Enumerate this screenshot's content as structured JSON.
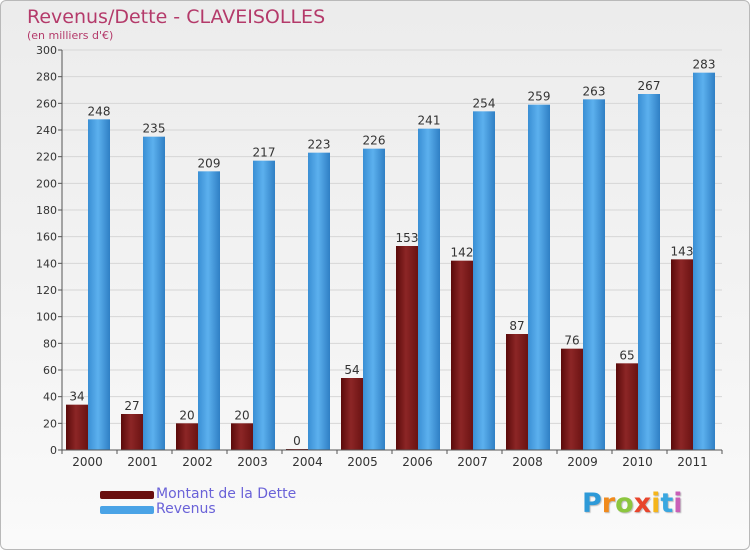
{
  "chart_data": {
    "type": "bar",
    "title": "Revenus/Dette - CLAVEISOLLES",
    "subtitle": "(en milliers d'€)",
    "categories": [
      "2000",
      "2001",
      "2002",
      "2003",
      "2004",
      "2005",
      "2006",
      "2007",
      "2008",
      "2009",
      "2010",
      "2011"
    ],
    "series": [
      {
        "name": "Montant de la Dette",
        "values": [
          34,
          27,
          20,
          20,
          0,
          54,
          153,
          142,
          87,
          76,
          65,
          143
        ],
        "color": "#7a1a1a"
      },
      {
        "name": "Revenus",
        "values": [
          248,
          235,
          209,
          217,
          223,
          226,
          241,
          254,
          259,
          263,
          267,
          283
        ],
        "color": "#4aa3e6"
      }
    ],
    "ylim": [
      0,
      300
    ],
    "yticks": [
      0,
      20,
      40,
      60,
      80,
      100,
      120,
      140,
      160,
      180,
      200,
      220,
      240,
      260,
      280,
      300
    ],
    "grid": true,
    "legend_position": "bottom-left"
  },
  "brand": {
    "letters": [
      "P",
      "r",
      "o",
      "x",
      "i",
      "t",
      "i"
    ],
    "colors": [
      "#2e9ad8",
      "#f08a1c",
      "#8cc63f",
      "#e8452c",
      "#f5b51b",
      "#3aa7e0",
      "#c95fb8"
    ]
  }
}
